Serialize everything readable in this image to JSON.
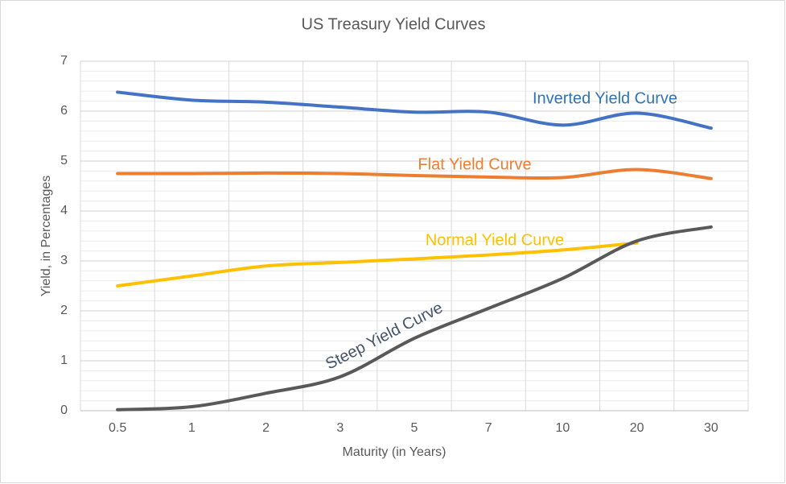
{
  "chart_data": {
    "type": "line",
    "title": "US Treasury Yield Curves",
    "x_label": "Maturity  (in Years)",
    "y_label": "Yield, in Percentages",
    "categories": [
      "0.5",
      "1",
      "2",
      "3",
      "5",
      "7",
      "10",
      "20",
      "30"
    ],
    "series": [
      {
        "name": "Inverted Yield Curve",
        "color": "#4472c4",
        "values": [
          6.38,
          6.22,
          6.18,
          6.08,
          5.98,
          5.98,
          5.72,
          5.96,
          5.66
        ]
      },
      {
        "name": "Flat Yield Curve",
        "color": "#ed7d31",
        "values": [
          4.75,
          4.75,
          4.76,
          4.75,
          4.71,
          4.68,
          4.67,
          4.83,
          4.65
        ]
      },
      {
        "name": "Normal Yield Curve",
        "color": "#ffc000",
        "values": [
          2.5,
          2.7,
          2.9,
          2.97,
          3.04,
          3.12,
          3.22,
          3.36,
          null
        ]
      },
      {
        "name": "Steep Yield Curve",
        "color": "#595959",
        "values": [
          0.02,
          0.08,
          0.35,
          0.68,
          1.45,
          2.05,
          2.65,
          3.4,
          3.68
        ]
      }
    ],
    "ylim": [
      0,
      7
    ],
    "yticks": [
      0,
      1,
      2,
      3,
      4,
      5,
      6,
      7
    ],
    "grid": true
  }
}
